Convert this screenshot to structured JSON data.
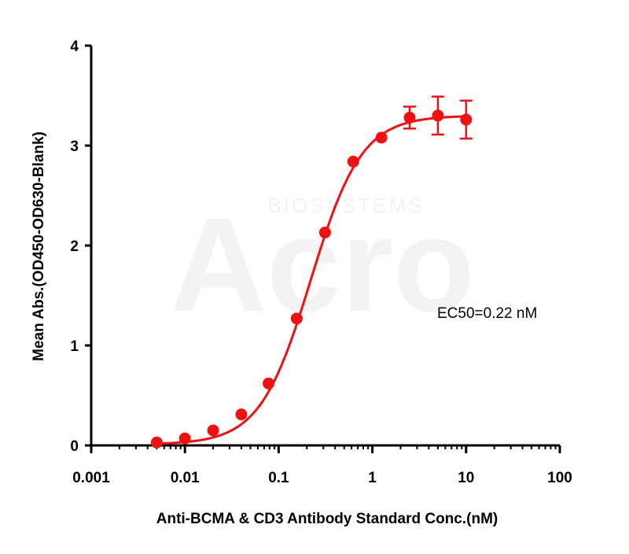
{
  "watermark": {
    "brand": "Acro",
    "sub": "BIOSYSTEMS"
  },
  "chart_data": {
    "type": "scatter",
    "title": "",
    "xlabel": "Anti-BCMA & CD3 Antibody Standard Conc.(nM)",
    "ylabel": "Mean Abs.(OD450-OD630-Blank)",
    "x_scale": "log",
    "xlim": [
      0.001,
      100
    ],
    "ylim": [
      0,
      4
    ],
    "x_ticks": [
      0.001,
      0.01,
      0.1,
      1,
      10,
      100
    ],
    "x_tick_labels": [
      "0.001",
      "0.01",
      "0.1",
      "1",
      "10",
      "100"
    ],
    "y_ticks": [
      0,
      1,
      2,
      3,
      4
    ],
    "y_tick_labels": [
      "0",
      "1",
      "2",
      "3",
      "4"
    ],
    "color": "#ee1111",
    "series": [
      {
        "x": [
          0.005,
          0.01,
          0.02,
          0.04,
          0.078,
          0.156,
          0.3125,
          0.625,
          1.25,
          2.5,
          5,
          10
        ],
        "y": [
          0.03,
          0.07,
          0.15,
          0.31,
          0.62,
          1.27,
          2.13,
          2.84,
          3.08,
          3.28,
          3.3,
          3.26
        ],
        "error": [
          0,
          0,
          0,
          0,
          0,
          0,
          0,
          0,
          0,
          0.11,
          0.19,
          0.19
        ]
      }
    ],
    "fit": {
      "model": "4PL",
      "bottom": 0.01,
      "top": 3.3,
      "ec50": 0.22,
      "hill": 1.6
    },
    "annotation": "EC50=0.22 nM",
    "grid": false,
    "legend": "none"
  }
}
